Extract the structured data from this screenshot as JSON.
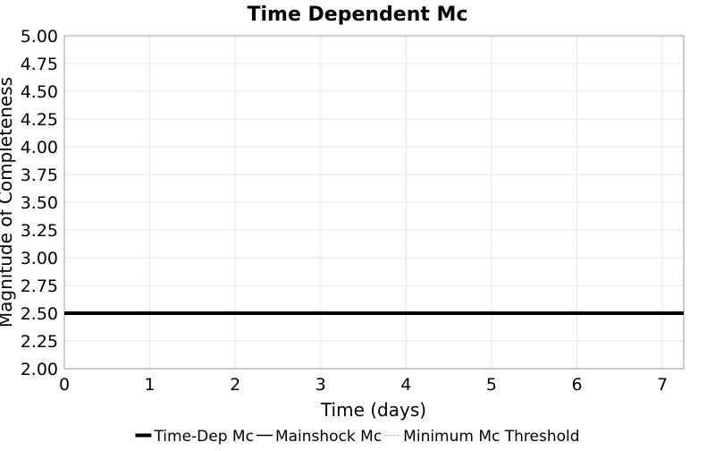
{
  "chart_data": {
    "type": "line",
    "title": "Time Dependent Mc",
    "xlabel": "Time (days)",
    "ylabel": "Magnitude of Completeness",
    "xlim": [
      0,
      7.25
    ],
    "ylim": [
      2.0,
      5.0
    ],
    "x_ticks": [
      "0",
      "1",
      "2",
      "3",
      "4",
      "5",
      "6",
      "7"
    ],
    "y_ticks": [
      "2.00",
      "2.25",
      "2.50",
      "2.75",
      "3.00",
      "3.25",
      "3.50",
      "3.75",
      "4.00",
      "4.25",
      "4.50",
      "4.75",
      "5.00"
    ],
    "grid": true,
    "legend_position": "bottom",
    "series": [
      {
        "name": "Time-Dep Mc",
        "x": [
          0,
          7.25
        ],
        "y": [
          2.5,
          2.5
        ],
        "color": "#000000",
        "style": "solid-thick"
      },
      {
        "name": "Mainshock Mc",
        "x": [],
        "y": [],
        "color": "#000000",
        "style": "solid-thin"
      },
      {
        "name": "Minimum Mc Threshold",
        "x": [],
        "y": [],
        "color": "#888888",
        "style": "dotted"
      }
    ]
  }
}
